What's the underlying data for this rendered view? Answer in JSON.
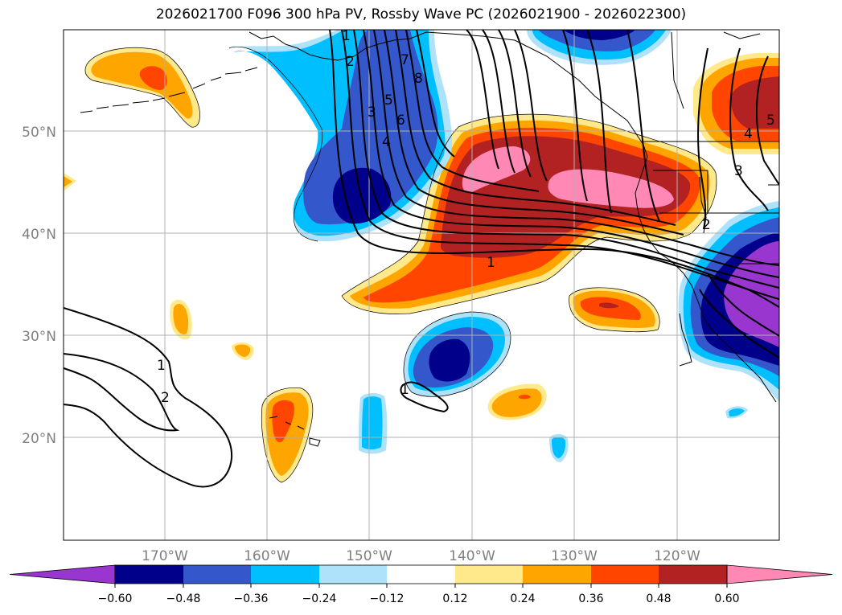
{
  "title": "2026021700 F096 300 hPa PV, Rossby Wave PC (2026021900 - 2026022300)",
  "lat_labels": [
    "50°N",
    "40°N",
    "30°N",
    "20°N"
  ],
  "lon_labels": [
    "170°W",
    "160°W",
    "150°W",
    "140°W",
    "130°W",
    "120°W"
  ],
  "colorbar": {
    "ticks": [
      "−0.60",
      "−0.48",
      "−0.36",
      "−0.24",
      "−0.12",
      "0.12",
      "0.24",
      "0.36",
      "0.48",
      "0.60"
    ],
    "colors": [
      "#9a36d0",
      "#00008b",
      "#3557cc",
      "#00bfff",
      "#aee2fb",
      "#ffffff",
      "#ffe98a",
      "#ffa500",
      "#ff4500",
      "#b22222",
      "#ff88b4"
    ]
  },
  "contour_labels": [
    "1",
    "2",
    "3",
    "4",
    "5",
    "6",
    "7",
    "8",
    "1",
    "1",
    "2",
    "3",
    "4",
    "5",
    "1",
    "2"
  ],
  "fill_colors": {
    "purple": "#9a36d0",
    "navy": "#00008b",
    "royal": "#3557cc",
    "cyan": "#00bfff",
    "lightblue": "#aee2fb",
    "yellow": "#ffe98a",
    "orange": "#ffa500",
    "redorange": "#ff4500",
    "firebrick": "#b22222",
    "pink": "#ff88b4"
  }
}
